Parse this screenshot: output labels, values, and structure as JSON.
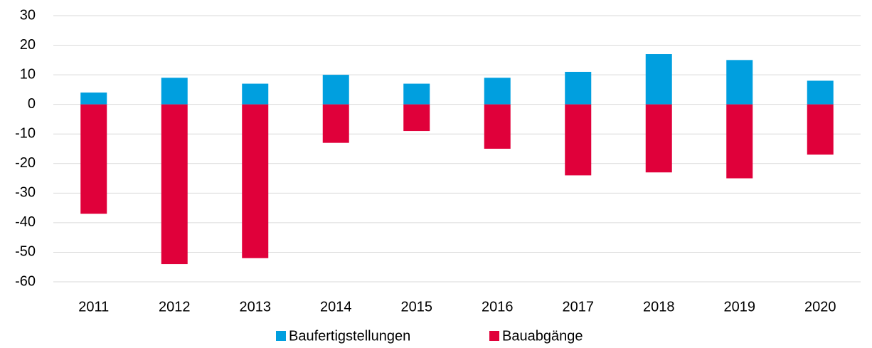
{
  "chart_data": {
    "type": "bar",
    "categories": [
      "2011",
      "2012",
      "2013",
      "2014",
      "2015",
      "2016",
      "2017",
      "2018",
      "2019",
      "2020"
    ],
    "series": [
      {
        "name": "Baufertigstellungen",
        "color": "#009fdf",
        "values": [
          4,
          9,
          7,
          10,
          7,
          9,
          11,
          17,
          15,
          8
        ]
      },
      {
        "name": "Bauabgänge",
        "color": "#e0003a",
        "values": [
          -37,
          -54,
          -52,
          -13,
          -9,
          -15,
          -24,
          -23,
          -25,
          -17
        ]
      }
    ],
    "ylim": [
      -60,
      30
    ],
    "yticks": [
      -60,
      -50,
      -40,
      -30,
      -20,
      -10,
      0,
      10,
      20,
      30
    ],
    "grid": true,
    "legend": "bottom"
  }
}
